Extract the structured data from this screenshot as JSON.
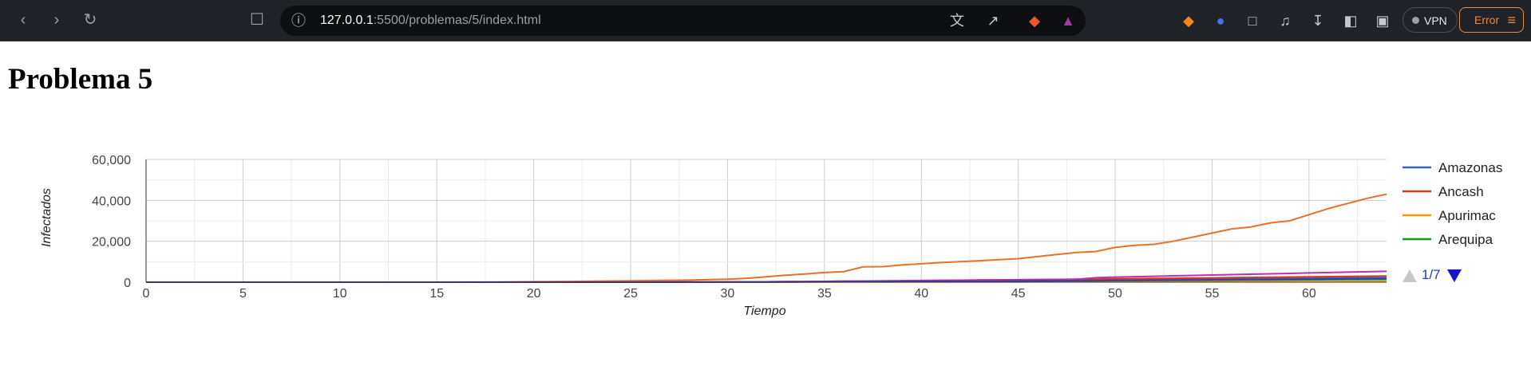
{
  "browser": {
    "url_host": "127.0.0.1",
    "url_path": ":5500/problemas/5/index.html",
    "vpn_label": "VPN",
    "error_label": "Error",
    "icons": [
      "back-icon",
      "forward-icon",
      "reload-icon",
      "bookmark-icon",
      "site-info-icon",
      "translate-icon",
      "share-icon",
      "brave-shield-icon",
      "brave-rewards-icon",
      "metamask-icon",
      "extension-icon",
      "puzzle-icon",
      "media-icon",
      "download-icon",
      "sidebar-icon",
      "wallet-icon",
      "menu-icon"
    ]
  },
  "page": {
    "title": "Problema 5"
  },
  "chart_data": {
    "type": "line",
    "title": "",
    "xlabel": "Tiempo",
    "ylabel": "Infectados",
    "xlim": [
      0,
      64
    ],
    "ylim": [
      0,
      60000
    ],
    "x_ticks": [
      "0",
      "5",
      "10",
      "15",
      "20",
      "25",
      "30",
      "35",
      "40",
      "45",
      "50",
      "55",
      "60"
    ],
    "y_ticks": [
      "0",
      "20,000",
      "40,000",
      "60,000"
    ],
    "grid": true,
    "legend_position": "right",
    "legend_page": "1/7",
    "x": [
      0,
      5,
      10,
      15,
      18,
      20,
      22,
      25,
      28,
      30,
      31,
      32,
      33,
      34,
      35,
      36,
      37,
      38,
      39,
      40,
      41,
      42,
      43,
      44,
      45,
      46,
      47,
      48,
      49,
      50,
      51,
      52,
      53,
      54,
      55,
      56,
      57,
      58,
      59,
      60,
      61,
      62,
      63,
      64
    ],
    "series": [
      {
        "name": "Amazonas",
        "color": "#3366cc",
        "values": [
          0,
          0,
          0,
          0,
          0,
          0,
          0,
          10,
          20,
          50,
          80,
          120,
          160,
          200,
          260,
          320,
          380,
          440,
          500,
          560,
          620,
          680,
          740,
          800,
          860,
          920,
          980,
          1040,
          1100,
          1180,
          1260,
          1340,
          1420,
          1500,
          1580,
          1660,
          1740,
          1820,
          1900,
          1980,
          2060,
          2140,
          2200,
          2280
        ]
      },
      {
        "name": "Ancash",
        "color": "#dc3912",
        "values": [
          0,
          0,
          0,
          0,
          0,
          0,
          0,
          20,
          50,
          100,
          150,
          200,
          260,
          320,
          400,
          480,
          560,
          640,
          720,
          800,
          880,
          960,
          1040,
          1120,
          1200,
          1280,
          1360,
          1440,
          1520,
          1620,
          1720,
          1820,
          1920,
          2020,
          2120,
          2220,
          2320,
          2420,
          2520,
          2620,
          2720,
          2820,
          2920,
          3000
        ]
      },
      {
        "name": "Apurimac",
        "color": "#ff9900",
        "values": [
          0,
          0,
          0,
          0,
          0,
          0,
          0,
          5,
          10,
          20,
          30,
          40,
          50,
          60,
          70,
          80,
          90,
          100,
          110,
          120,
          130,
          140,
          150,
          160,
          170,
          180,
          190,
          200,
          210,
          220,
          230,
          240,
          250,
          260,
          270,
          280,
          290,
          300,
          310,
          320,
          330,
          340,
          350,
          360
        ]
      },
      {
        "name": "Arequipa",
        "color": "#109618",
        "values": [
          0,
          0,
          0,
          0,
          0,
          0,
          0,
          10,
          20,
          40,
          60,
          80,
          110,
          140,
          170,
          200,
          240,
          280,
          320,
          360,
          400,
          440,
          480,
          520,
          560,
          600,
          640,
          680,
          720,
          760,
          800,
          840,
          880,
          920,
          960,
          1000,
          1040,
          1080,
          1120,
          1160,
          1200,
          1240,
          1280,
          1320
        ]
      },
      {
        "color": "#e8702a",
        "values": [
          0,
          0,
          0,
          0,
          100,
          250,
          400,
          700,
          1000,
          1500,
          1900,
          2600,
          3400,
          4000,
          4700,
          5200,
          7500,
          7600,
          8400,
          9000,
          9600,
          10000,
          10500,
          11000,
          11500,
          12500,
          13500,
          14500,
          15000,
          17000,
          18000,
          18500,
          20000,
          22000,
          24000,
          26000,
          27000,
          29000,
          30000,
          33000,
          36000,
          38500,
          41000,
          43000
        ]
      },
      {
        "color": "#c12db3",
        "values": [
          0,
          0,
          0,
          0,
          0,
          0,
          10,
          30,
          60,
          100,
          150,
          200,
          260,
          320,
          380,
          450,
          520,
          600,
          680,
          760,
          840,
          920,
          1000,
          1080,
          1160,
          1240,
          1320,
          1400,
          2200,
          2500,
          2700,
          2900,
          3100,
          3300,
          3500,
          3700,
          3900,
          4100,
          4300,
          4500,
          4700,
          4900,
          5100,
          5300
        ]
      },
      {
        "color": "#3b3eac",
        "values": [
          0,
          0,
          0,
          0,
          0,
          0,
          0,
          10,
          30,
          60,
          90,
          120,
          160,
          200,
          240,
          280,
          320,
          360,
          400,
          440,
          480,
          520,
          560,
          600,
          640,
          680,
          720,
          760,
          800,
          860,
          920,
          980,
          1040,
          1100,
          1160,
          1220,
          1280,
          1340,
          1400,
          1460,
          1520,
          1580,
          1640,
          1700
        ]
      }
    ]
  }
}
